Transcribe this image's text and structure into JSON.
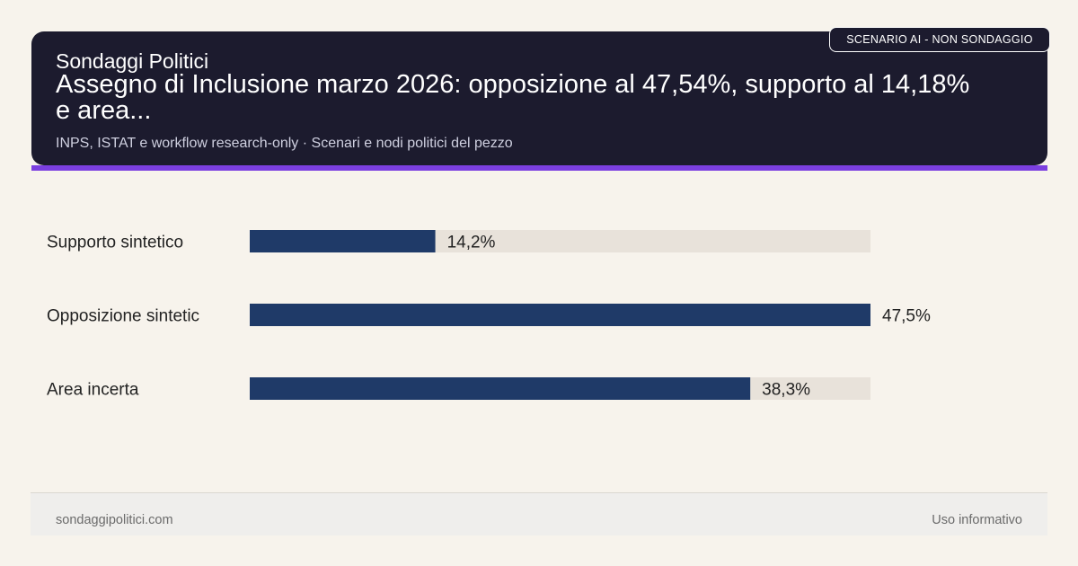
{
  "header": {
    "site_name": "Sondaggi Politici",
    "headline": "Assegno di Inclusione marzo 2026: opposizione al 47,54%, supporto al 14,18% e area...",
    "subtitle": "INPS, ISTAT e workflow research-only · Scenari e nodi politici del pezzo",
    "badge": "SCENARIO AI - NON SONDAGGIO"
  },
  "colors": {
    "header_bg": "#1c1b2e",
    "accent": "#7b3fe0",
    "bar_fill": "#1f3a68",
    "bar_track": "#e8e2da",
    "background": "#f7f3ec"
  },
  "chart_data": {
    "type": "bar",
    "orientation": "horizontal",
    "categories": [
      "Supporto sintetico",
      "Opposizione sintetic",
      "Area incerta"
    ],
    "values": [
      14.2,
      47.5,
      38.3
    ],
    "value_labels": [
      "14,2%",
      "47,5%",
      "38,3%"
    ],
    "xlim": [
      0,
      47.5
    ],
    "grid": false,
    "legend": "none"
  },
  "footer": {
    "left": "sondaggipolitici.com",
    "right": "Uso informativo"
  }
}
